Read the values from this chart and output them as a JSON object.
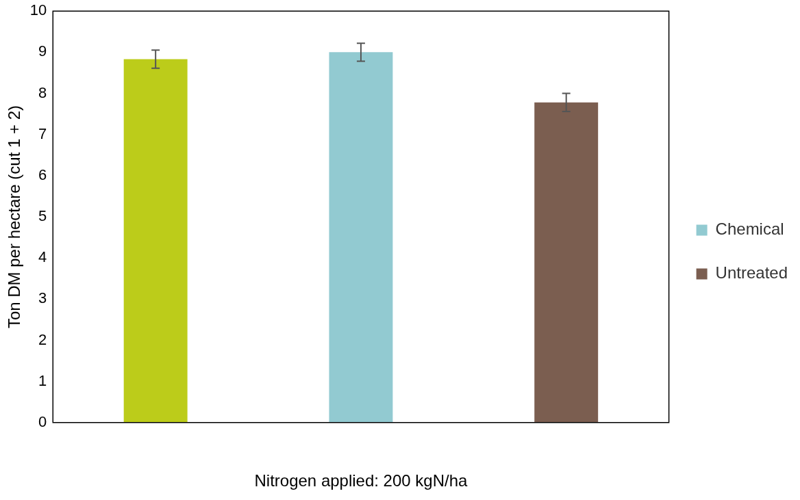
{
  "chart_data": {
    "type": "bar",
    "xlabel": "Nitrogen applied: 200 kgN/ha",
    "ylabel": "Ton DM per hectare (cut 1 + 2)",
    "categories": [
      null,
      null,
      null
    ],
    "series": [
      {
        "color": "#bccc1a",
        "values": [
          8.83,
          null,
          null
        ],
        "errors": [
          0.22,
          null,
          null
        ]
      },
      {
        "name": "Chemical",
        "color": "#92cad1",
        "values": [
          null,
          9.0,
          null
        ],
        "errors": [
          null,
          0.22,
          null
        ]
      },
      {
        "name": "Untreated",
        "color": "#7b5e50",
        "values": [
          null,
          null,
          7.78
        ],
        "errors": [
          null,
          null,
          0.22
        ]
      }
    ],
    "ylim": [
      0,
      10
    ],
    "yticks": [
      0,
      1,
      2,
      3,
      4,
      5,
      6,
      7,
      8,
      9,
      10
    ],
    "stacked": true,
    "grid": false,
    "legend": "right"
  }
}
